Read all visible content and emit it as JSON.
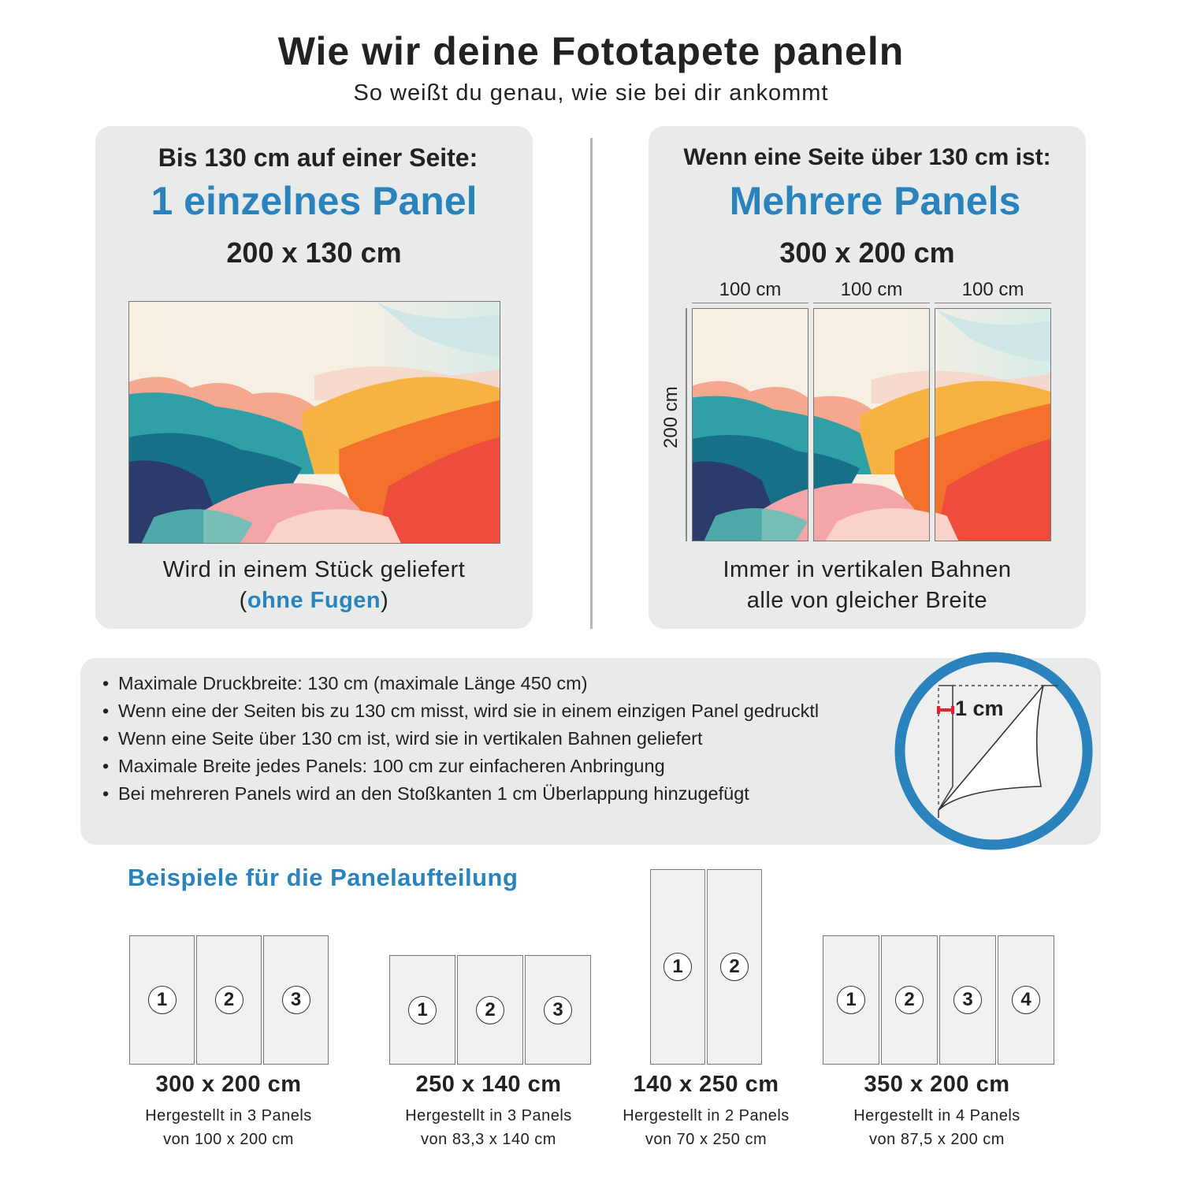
{
  "header": {
    "title": "Wie wir deine Fototapete paneln",
    "subtitle": "So weißt du genau, wie sie bei dir ankommt"
  },
  "left_card": {
    "condition": "Bis 130 cm auf einer Seite:",
    "headline": "1 einzelnes Panel",
    "size": "200 x 130 cm",
    "caption_line1": "Wird in einem Stück geliefert",
    "caption_paren_open": "(",
    "caption_highlight": "ohne Fugen",
    "caption_paren_close": ")"
  },
  "right_card": {
    "condition": "Wenn eine Seite über 130 cm ist:",
    "headline": "Mehrere Panels",
    "size": "300 x 200 cm",
    "panel_widths": [
      "100 cm",
      "100 cm",
      "100 cm"
    ],
    "height_label": "200 cm",
    "caption_line1": "Immer in vertikalen Bahnen",
    "caption_line2": "alle von gleicher Breite"
  },
  "info": {
    "bullets": [
      "Maximale Druckbreite: 130 cm (maximale Länge 450 cm)",
      "Wenn eine der Seiten bis zu 130 cm misst, wird sie in einem einzigen Panel gedrucktl",
      "Wenn eine Seite über 130 cm ist, wird sie in vertikalen Bahnen geliefert",
      "Maximale Breite jedes Panels: 100 cm zur einfacheren Anbringung",
      "Bei mehreren Panels wird an den Stoßkanten 1 cm Überlappung hinzugefügt"
    ],
    "overlap_label": "1 cm"
  },
  "examples": {
    "heading": "Beispiele für die Panelaufteilung",
    "items": [
      {
        "size": "300 x 200 cm",
        "line1": "Hergestellt in 3 Panels",
        "line2": "von 100 x 200 cm",
        "panels": [
          "1",
          "2",
          "3"
        ]
      },
      {
        "size": "250 x 140 cm",
        "line1": "Hergestellt in 3 Panels",
        "line2": "von 83,3 x 140 cm",
        "panels": [
          "1",
          "2",
          "3"
        ]
      },
      {
        "size": "140 x 250 cm",
        "line1": "Hergestellt in 2 Panels",
        "line2": "von 70 x 250 cm",
        "panels": [
          "1",
          "2"
        ]
      },
      {
        "size": "350 x 200 cm",
        "line1": "Hergestellt in 4 Panels",
        "line2": "von 87,5 x 200 cm",
        "panels": [
          "1",
          "2",
          "3",
          "4"
        ]
      }
    ]
  },
  "colors": {
    "accent": "#2a83bd",
    "card": "#e9ebea",
    "overlap_marker": "#e8202a"
  }
}
